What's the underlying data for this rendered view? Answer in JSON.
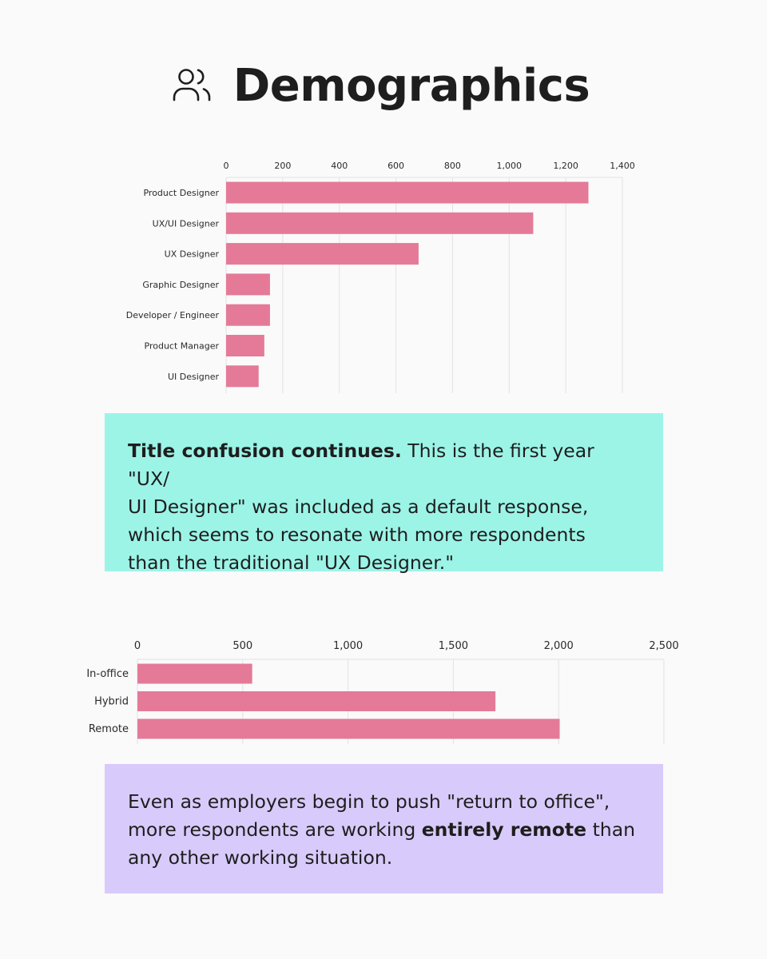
{
  "header": {
    "title": "Demographics",
    "icon": "users-icon"
  },
  "colors": {
    "bar": "#e47a98",
    "grid": "#e3e3e3",
    "callout1_bg": "#9cf4e7",
    "callout2_bg": "#d8cbfb"
  },
  "chart_data": [
    {
      "type": "bar",
      "orientation": "horizontal",
      "categories": [
        "Product Designer",
        "UX/UI Designer",
        "UX Designer",
        "Graphic Designer",
        "Developer / Engineer",
        "Product Manager",
        "UI Designer"
      ],
      "values": [
        1280,
        1085,
        680,
        155,
        155,
        135,
        115
      ],
      "xlim": [
        0,
        1400
      ],
      "xticks": [
        0,
        200,
        400,
        600,
        800,
        1000,
        1200,
        1400
      ],
      "xtick_labels": [
        "0",
        "200",
        "400",
        "600",
        "800",
        "1,000",
        "1,200",
        "1,400"
      ],
      "x_axis_position": "top",
      "grid": true
    },
    {
      "type": "bar",
      "orientation": "horizontal",
      "categories": [
        "In-office",
        "Hybrid",
        "Remote"
      ],
      "values": [
        545,
        1700,
        2005
      ],
      "xlim": [
        0,
        2500
      ],
      "xticks": [
        0,
        500,
        1000,
        1500,
        2000,
        2500
      ],
      "xtick_labels": [
        "0",
        "500",
        "1,000",
        "1,500",
        "2,000",
        "2,500"
      ],
      "x_axis_position": "top",
      "grid": true
    }
  ],
  "callout1": {
    "bold": "Title confusion continues.",
    "text_line1": " This is the first year \"UX/",
    "text_line2": "UI Designer\" was included as a default response,",
    "text_line3": "which seems to resonate with more respondents",
    "text_line4": "than the traditional \"UX Designer.\""
  },
  "callout2": {
    "line1": "Even as employers begin to push \"return to office\",",
    "line2_before": "more respondents are working ",
    "line2_bold": "entirely remote",
    "line2_after": " than",
    "line3": "any other working situation."
  }
}
